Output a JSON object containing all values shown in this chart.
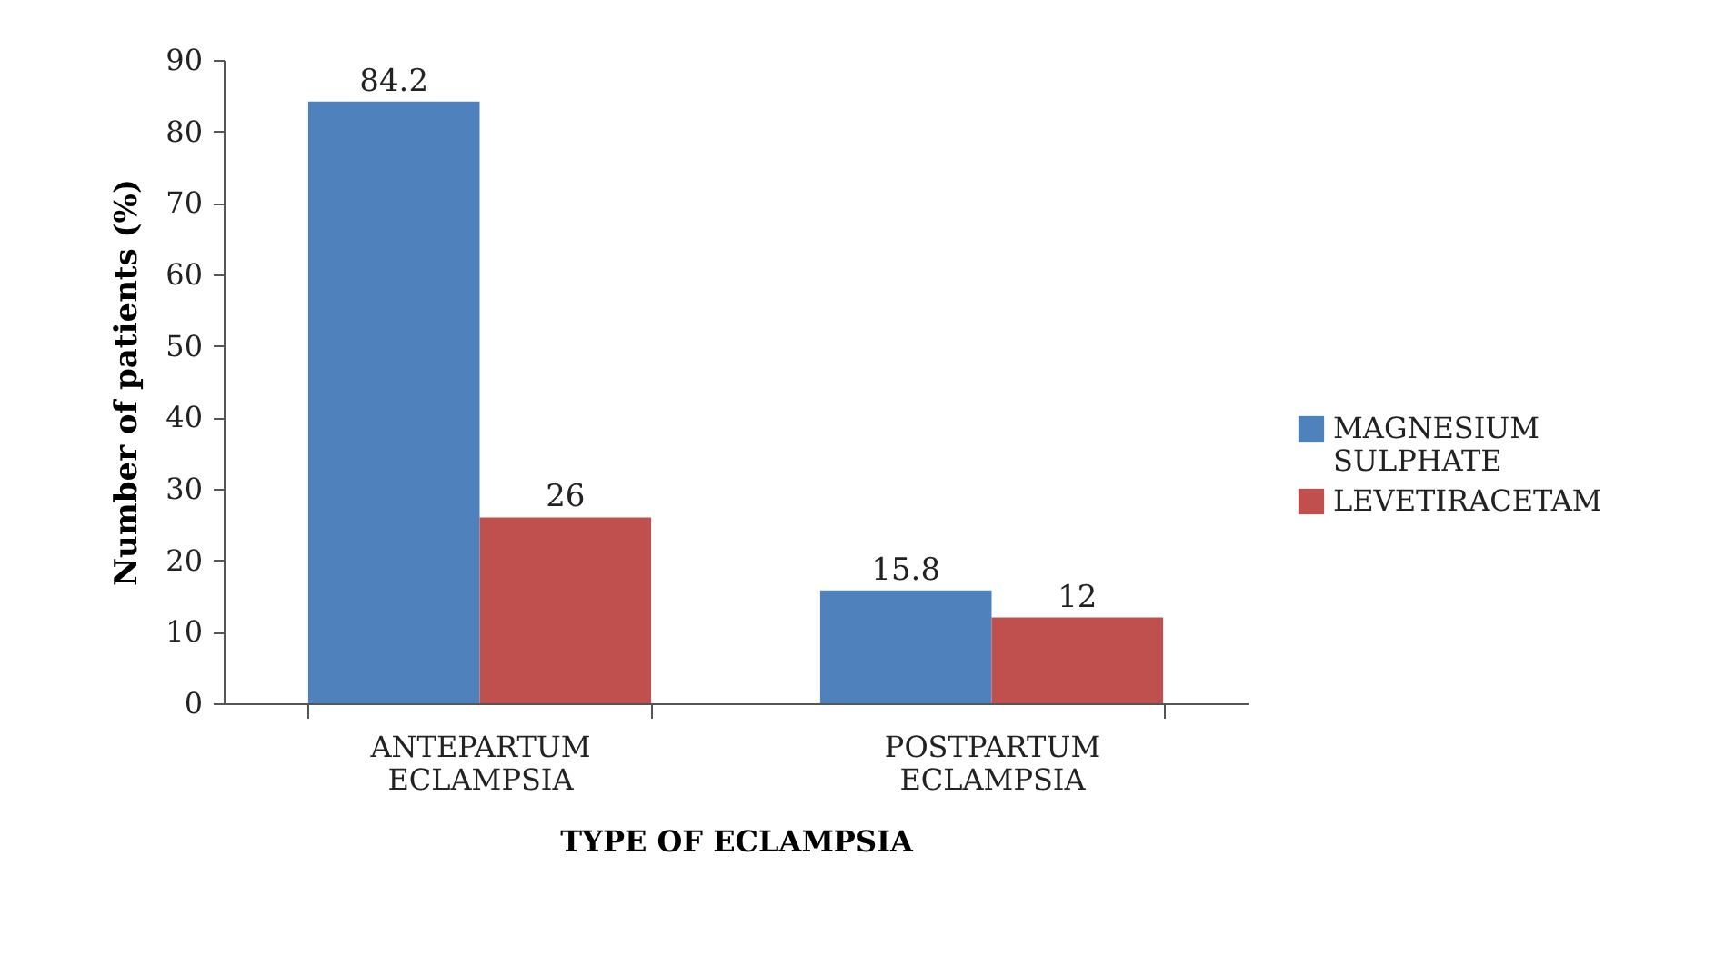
{
  "chart_data": {
    "type": "bar",
    "xlabel": "TYPE OF ECLAMPSIA",
    "ylabel": "Number of patients (%)",
    "categories": [
      "ANTEPARTUM ECLAMPSIA",
      "POSTPARTUM ECLAMPSIA"
    ],
    "series": [
      {
        "name": "MAGNESIUM SULPHATE",
        "color": "#4f81bd",
        "values": [
          84.2,
          15.8
        ]
      },
      {
        "name": "LEVETIRACETAM",
        "color": "#c0504d",
        "values": [
          26,
          12
        ]
      }
    ],
    "ylim": [
      0,
      90
    ],
    "yticks": [
      0,
      10,
      20,
      30,
      40,
      50,
      60,
      70,
      80,
      90
    ],
    "data_labels": true,
    "legend": "right",
    "grid": false
  }
}
